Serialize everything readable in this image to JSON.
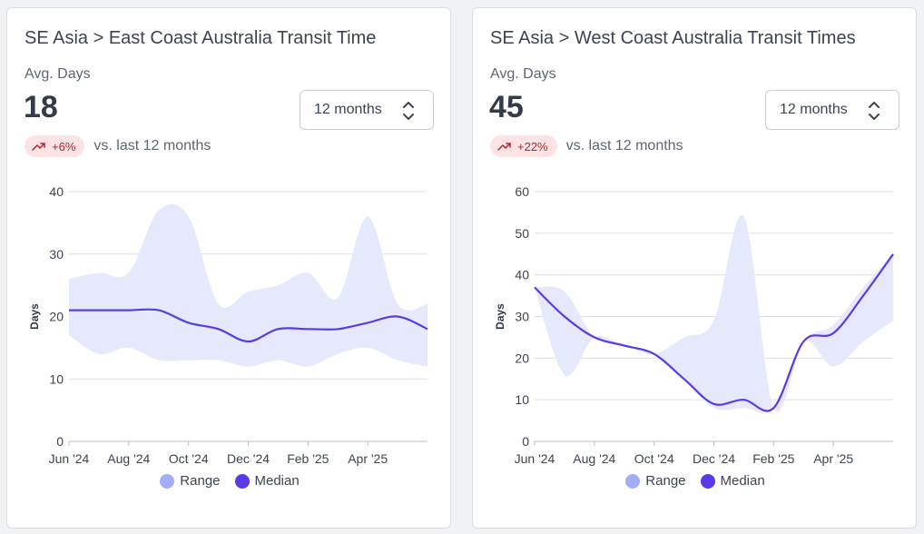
{
  "period_select": {
    "value": "12 months"
  },
  "legend": {
    "range_label": "Range",
    "median_label": "Median"
  },
  "colors": {
    "range_fill": "#e6e8fb",
    "range_dot": "#a4aef7",
    "median_line": "#5b3ae6",
    "grid": "#dcdfe5",
    "badge_bg": "#fde3e3",
    "badge_text": "#b0262e"
  },
  "cards": [
    {
      "title": "SE Asia > East Coast Australia Transit Time",
      "metric_label": "Avg. Days",
      "metric_value": "18",
      "change_badge": "+6%",
      "change_icon": "trending-up-icon",
      "comparison_text": "vs. last 12 months"
    },
    {
      "title": "SE Asia > West Coast Australia Transit Times",
      "metric_label": "Avg. Days",
      "metric_value": "45",
      "change_badge": "+22%",
      "change_icon": "trending-up-icon",
      "comparison_text": "vs. last 12 months"
    }
  ],
  "chart_data": [
    {
      "type": "area",
      "title": "SE Asia > East Coast Australia Transit Time",
      "ylabel": "Days",
      "xlabel": "",
      "ylim": [
        0,
        40
      ],
      "yticks": [
        0,
        10,
        20,
        30,
        40
      ],
      "grid": true,
      "legend_position": "bottom",
      "x": [
        "2024-06",
        "2024-07",
        "2024-08",
        "2024-09",
        "2024-10",
        "2024-11",
        "2024-12",
        "2025-01",
        "2025-02",
        "2025-03",
        "2025-04",
        "2025-05",
        "2025-06"
      ],
      "xticks": [
        "Jun '24",
        "Aug '24",
        "Oct '24",
        "Dec '24",
        "Feb '25",
        "Apr '25"
      ],
      "series": [
        {
          "name": "Median",
          "values": [
            21,
            21,
            21,
            21,
            19,
            18,
            16,
            18,
            18,
            18,
            19,
            20,
            18
          ]
        },
        {
          "name": "Range",
          "low": [
            17,
            14,
            15,
            13,
            13,
            13,
            12,
            13,
            12,
            14,
            15,
            13,
            12
          ],
          "high": [
            26,
            27,
            27,
            37,
            36,
            22,
            24,
            25,
            27,
            23,
            36,
            22,
            22
          ]
        }
      ]
    },
    {
      "type": "area",
      "title": "SE Asia > West Coast Australia Transit Times",
      "ylabel": "Days",
      "xlabel": "",
      "ylim": [
        0,
        60
      ],
      "yticks": [
        0,
        10,
        20,
        30,
        40,
        50,
        60
      ],
      "grid": true,
      "legend_position": "bottom",
      "x": [
        "2024-06",
        "2024-07",
        "2024-08",
        "2024-09",
        "2024-10",
        "2024-11",
        "2024-12",
        "2025-01",
        "2025-02",
        "2025-03",
        "2025-04",
        "2025-05",
        "2025-06"
      ],
      "xticks": [
        "Jun '24",
        "Aug '24",
        "Oct '24",
        "Dec '24",
        "Feb '25",
        "Apr '25"
      ],
      "series": [
        {
          "name": "Median",
          "values": [
            37,
            30,
            25,
            23,
            21,
            15,
            9,
            10,
            8,
            24,
            26,
            35,
            45
          ]
        },
        {
          "name": "Range",
          "low": [
            37,
            16,
            25,
            23,
            21,
            15,
            8,
            8,
            8,
            24,
            18,
            24,
            29
          ],
          "high": [
            37,
            36,
            25,
            23,
            21,
            25,
            29,
            54,
            8,
            24,
            28,
            37,
            45
          ]
        }
      ]
    }
  ]
}
